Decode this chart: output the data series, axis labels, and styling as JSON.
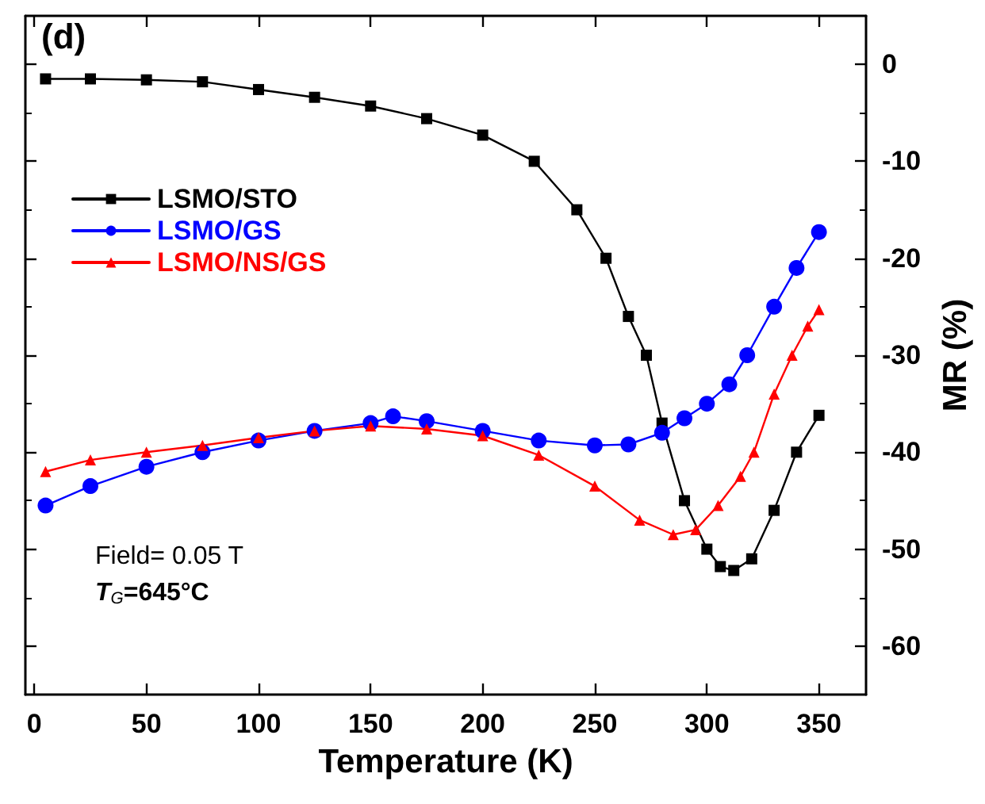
{
  "chart_data": {
    "type": "line",
    "xlabel": "Temperature (K)",
    "ylabel": "MR (%)",
    "xlim": [
      -4,
      371
    ],
    "ylim": [
      -65,
      5
    ],
    "xticks": [
      0,
      50,
      100,
      150,
      200,
      250,
      300,
      350
    ],
    "yticks": [
      -60,
      -50,
      -40,
      -30,
      -20,
      -10,
      0
    ],
    "legend": "top left",
    "grid": false,
    "annotations": [
      "(d)",
      "Field= 0.05 T",
      "T$_{G}$=645°C"
    ],
    "series": [
      {
        "name": "LSMO/STO",
        "color": "#000000",
        "marker": "square",
        "x": [
          5,
          25,
          50,
          75,
          100,
          125,
          150,
          175,
          200,
          223,
          242,
          255,
          265,
          273,
          280,
          290,
          300,
          306,
          312,
          320,
          330,
          340,
          350
        ],
        "values": [
          -1.5,
          -1.5,
          -1.6,
          -1.8,
          -2.6,
          -3.4,
          -4.3,
          -5.6,
          -7.3,
          -10,
          -15,
          -20,
          -26,
          -30,
          -37,
          -45,
          -50,
          -51.8,
          -52.2,
          -51,
          -46,
          -40,
          -36.2
        ]
      },
      {
        "name": "LSMO/GS",
        "color": "#0000ff",
        "marker": "circle",
        "x": [
          5,
          25,
          50,
          75,
          100,
          125,
          150,
          160,
          175,
          200,
          225,
          250,
          265,
          280,
          290,
          300,
          310,
          318,
          330,
          340,
          350
        ],
        "values": [
          -45.5,
          -43.5,
          -41.5,
          -40,
          -38.8,
          -37.8,
          -37,
          -36.3,
          -36.8,
          -37.8,
          -38.8,
          -39.3,
          -39.2,
          -38,
          -36.5,
          -35,
          -33,
          -30,
          -25,
          -21,
          -17.3
        ]
      },
      {
        "name": "LSMO/NS/GS",
        "color": "#ff0000",
        "marker": "triangle",
        "x": [
          5,
          25,
          50,
          75,
          100,
          125,
          150,
          175,
          200,
          225,
          250,
          270,
          285,
          295,
          305,
          315,
          321,
          330,
          338,
          345,
          350
        ],
        "values": [
          -42,
          -40.8,
          -40,
          -39.3,
          -38.5,
          -37.8,
          -37.3,
          -37.6,
          -38.3,
          -40.3,
          -43.5,
          -47,
          -48.5,
          -48,
          -45.5,
          -42.5,
          -40,
          -34,
          -30,
          -27,
          -25.3
        ]
      }
    ]
  }
}
